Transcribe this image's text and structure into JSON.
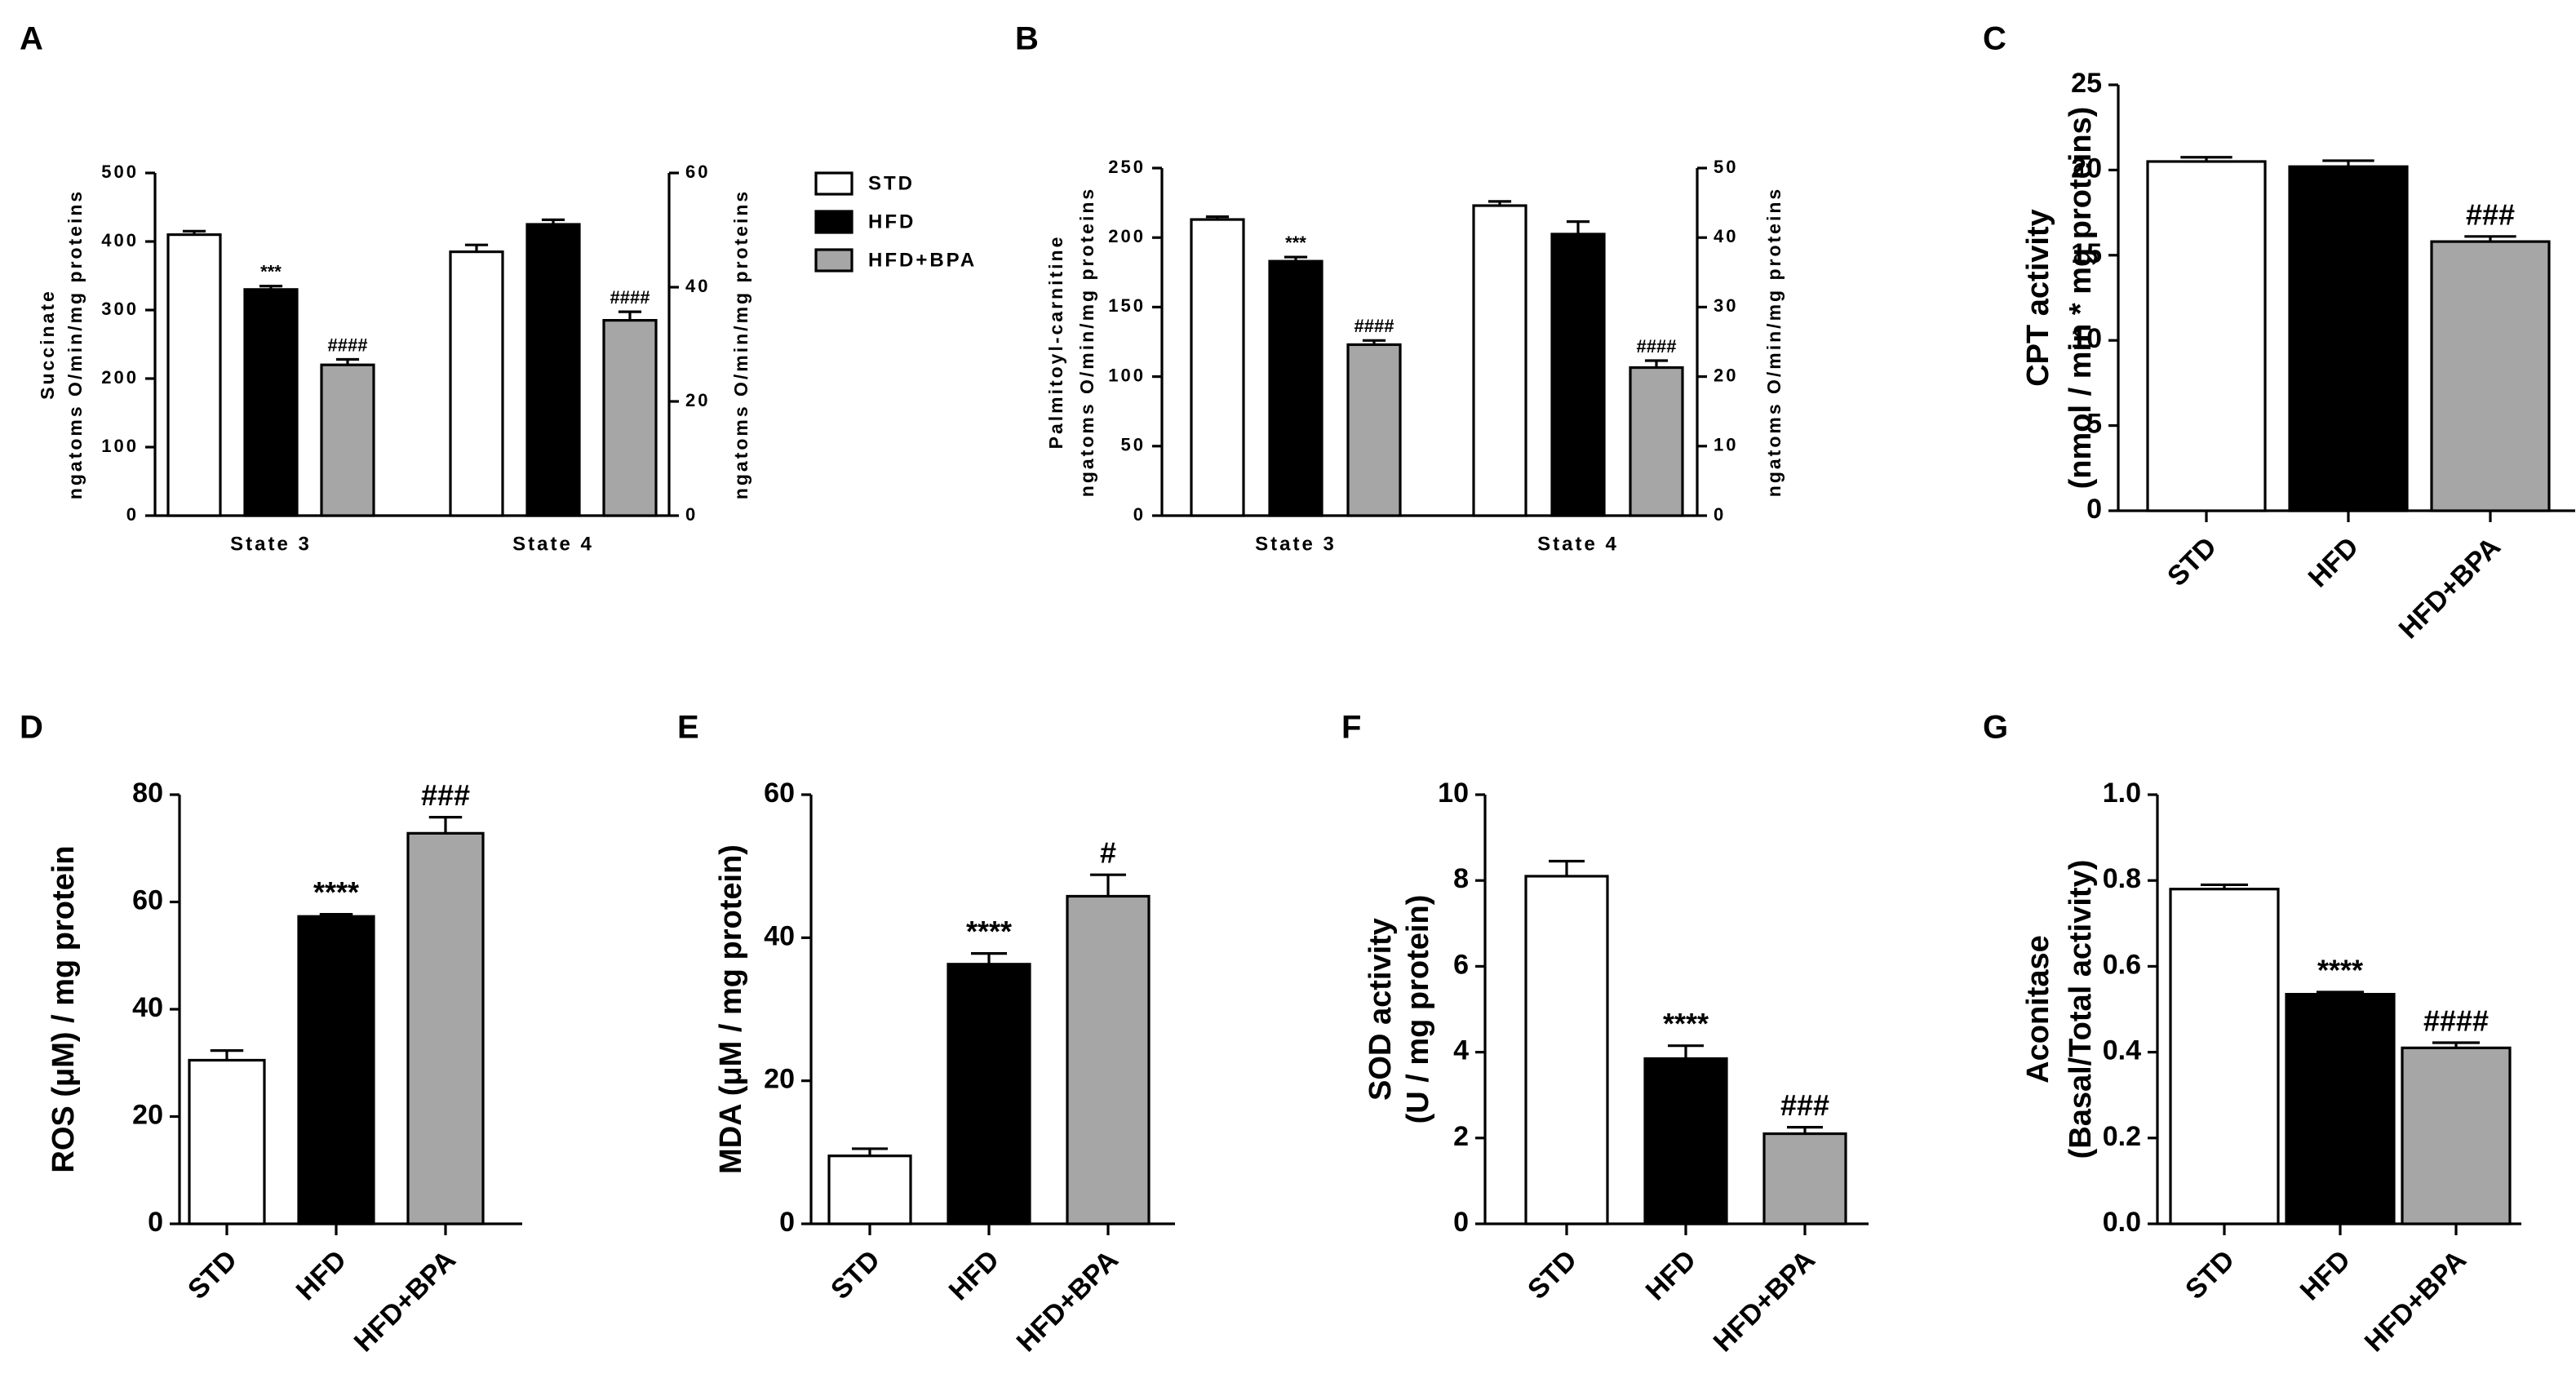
{
  "chart_data": [
    {
      "type": "bar",
      "panel": "A",
      "ylabel": [
        "Succinate",
        "ngatoms O/min/mg proteins"
      ],
      "y2label": [
        "ngatoms O/min/mg proteins"
      ],
      "categories": [
        "State 3",
        "State 4"
      ],
      "category_axis": [
        "y",
        "y2"
      ],
      "series": [
        {
          "name": "STD",
          "color": "#ffffff",
          "values": [
            410,
            46.2
          ],
          "errors": [
            5,
            1.2
          ],
          "annotations": [
            null,
            null
          ]
        },
        {
          "name": "HFD",
          "color": "#000000",
          "values": [
            330,
            51
          ],
          "errors": [
            5,
            0.8
          ],
          "annotations": [
            "***",
            null
          ]
        },
        {
          "name": "HFD+BPA",
          "color": "#a6a6a6",
          "values": [
            220,
            34.2
          ],
          "errors": [
            8,
            1.5
          ],
          "annotations": [
            "####",
            "####"
          ]
        }
      ],
      "ylim": [
        0,
        500
      ],
      "yticks": [
        0,
        100,
        200,
        300,
        400,
        500
      ],
      "y2lim": [
        0,
        60
      ],
      "y2ticks": [
        0,
        20,
        40,
        60
      ],
      "legend": true
    },
    {
      "type": "bar",
      "panel": "B",
      "ylabel": [
        "Palmitoyl-carnitine",
        "ngatoms O/min/mg proteins"
      ],
      "y2label": [
        "ngatoms O/min/mg proteins"
      ],
      "categories": [
        "State 3",
        "State 4"
      ],
      "category_axis": [
        "y",
        "y2"
      ],
      "series": [
        {
          "color": "#ffffff",
          "values": [
            213,
            44.6
          ],
          "errors": [
            2,
            0.6
          ],
          "annotations": [
            null,
            null
          ]
        },
        {
          "color": "#000000",
          "values": [
            183,
            40.5
          ],
          "errors": [
            3,
            1.8
          ],
          "annotations": [
            "***",
            null
          ]
        },
        {
          "color": "#a6a6a6",
          "values": [
            123,
            21.3
          ],
          "errors": [
            3,
            1
          ],
          "annotations": [
            "####",
            "####"
          ]
        }
      ],
      "ylim": [
        0,
        250
      ],
      "yticks": [
        0,
        50,
        100,
        150,
        200,
        250
      ],
      "y2lim": [
        0,
        50
      ],
      "y2ticks": [
        0,
        10,
        20,
        30,
        40,
        50
      ],
      "legend": false
    },
    {
      "type": "bar",
      "panel": "C",
      "ylabel": [
        "CPT activity",
        "(nmol / min * mg proteins)"
      ],
      "categories": [
        "STD",
        "HFD",
        "HFD+BPA"
      ],
      "values": [
        20.5,
        20.2,
        15.8
      ],
      "errors": [
        0.25,
        0.35,
        0.3
      ],
      "colors": [
        "#ffffff",
        "#000000",
        "#a6a6a6"
      ],
      "annotations": [
        null,
        null,
        "###"
      ],
      "ylim": [
        0,
        25
      ],
      "yticks": [
        0,
        5,
        10,
        15,
        20,
        25
      ]
    },
    {
      "type": "bar",
      "panel": "D",
      "ylabel": [
        "ROS (μM) / mg protein"
      ],
      "categories": [
        "STD",
        "HFD",
        "HFD+BPA"
      ],
      "values": [
        30.5,
        57.3,
        72.8
      ],
      "errors": [
        1.8,
        0.4,
        3
      ],
      "colors": [
        "#ffffff",
        "#000000",
        "#a6a6a6"
      ],
      "annotations": [
        null,
        "****",
        "###"
      ],
      "ylim": [
        0,
        80
      ],
      "yticks": [
        0,
        20,
        40,
        60,
        80
      ]
    },
    {
      "type": "bar",
      "panel": "E",
      "ylabel": [
        "MDA (μM / mg protein)"
      ],
      "categories": [
        "STD",
        "HFD",
        "HFD+BPA"
      ],
      "values": [
        9.5,
        36.3,
        45.8
      ],
      "errors": [
        1,
        1.5,
        3
      ],
      "colors": [
        "#ffffff",
        "#000000",
        "#a6a6a6"
      ],
      "annotations": [
        null,
        "****",
        "#"
      ],
      "ylim": [
        0,
        60
      ],
      "yticks": [
        0,
        20,
        40,
        60
      ]
    },
    {
      "type": "bar",
      "panel": "F",
      "ylabel": [
        "SOD activity",
        "(U / mg protein)"
      ],
      "categories": [
        "STD",
        "HFD",
        "HFD+BPA"
      ],
      "values": [
        8.1,
        3.85,
        2.1
      ],
      "errors": [
        0.35,
        0.3,
        0.15
      ],
      "colors": [
        "#ffffff",
        "#000000",
        "#a6a6a6"
      ],
      "annotations": [
        null,
        "****",
        "###"
      ],
      "ylim": [
        0,
        10
      ],
      "yticks": [
        0,
        2,
        4,
        6,
        8,
        10
      ]
    },
    {
      "type": "bar",
      "panel": "G",
      "ylabel": [
        "Aconitase",
        "(Basal/Total activity)"
      ],
      "categories": [
        "STD",
        "HFD",
        "HFD+BPA"
      ],
      "values": [
        0.78,
        0.535,
        0.41
      ],
      "errors": [
        0.01,
        0.005,
        0.012
      ],
      "colors": [
        "#ffffff",
        "#000000",
        "#a6a6a6"
      ],
      "annotations": [
        null,
        "****",
        "####"
      ],
      "ylim": [
        0,
        1
      ],
      "yticks": [
        {
          "value": 0,
          "label": "0.0"
        },
        {
          "value": 0.2,
          "label": "0.2"
        },
        {
          "value": 0.4,
          "label": "0.4"
        },
        {
          "value": 0.6,
          "label": "0.6"
        },
        {
          "value": 0.8,
          "label": "0.8"
        },
        {
          "value": 1,
          "label": "1.0"
        }
      ]
    }
  ]
}
